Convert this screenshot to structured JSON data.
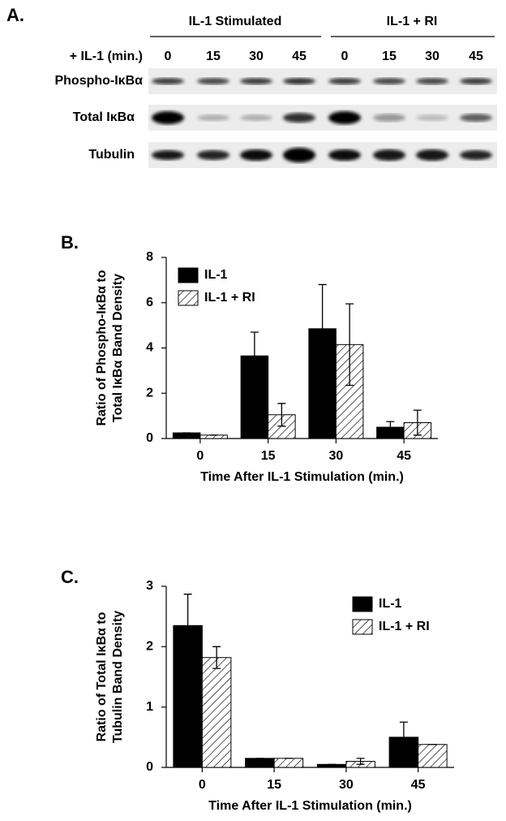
{
  "blot": {
    "panel_label": "A.",
    "groups": [
      "IL-1 Stimulated",
      "IL-1 + RI"
    ],
    "lane_title": "+ IL-1 (min.)",
    "lanes": [
      "0",
      "15",
      "30",
      "45",
      "0",
      "15",
      "30",
      "45"
    ],
    "rows": [
      "Phospho-IκBα",
      "Total IκBα",
      "Tubulin"
    ]
  },
  "chart_data": [
    {
      "type": "bar",
      "panel_label": "B.",
      "y_label": [
        "Ratio of Phospho-IκBα to",
        "Total IκBα Band Density"
      ],
      "x_label": "Time After IL-1 Stimulation (min.)",
      "categories": [
        "0",
        "15",
        "30",
        "45"
      ],
      "series": [
        {
          "name": "IL-1",
          "color": "#000000",
          "pattern": "solid",
          "values": [
            0.25,
            3.65,
            4.85,
            0.5
          ],
          "errors": [
            0,
            1.05,
            1.95,
            0.25
          ]
        },
        {
          "name": "IL-1 + RI",
          "color": "#000000",
          "pattern": "hatch",
          "values": [
            0.15,
            1.05,
            4.15,
            0.7
          ],
          "errors": [
            0,
            0.5,
            1.8,
            0.55
          ]
        }
      ],
      "ylim": [
        0,
        8
      ],
      "yticks": [
        0,
        2,
        4,
        6,
        8
      ],
      "legend": "upper left"
    },
    {
      "type": "bar",
      "panel_label": "C.",
      "y_label": [
        "Ratio of Total IκBα to",
        "Tubulin Band Density"
      ],
      "x_label": "Time After IL-1 Stimulation (min.)",
      "categories": [
        "0",
        "15",
        "30",
        "45"
      ],
      "series": [
        {
          "name": "IL-1",
          "color": "#000000",
          "pattern": "solid",
          "values": [
            2.35,
            0.15,
            0.05,
            0.5
          ],
          "errors": [
            0.52,
            0,
            0,
            0.25
          ]
        },
        {
          "name": "IL-1 + RI",
          "color": "#000000",
          "pattern": "hatch",
          "values": [
            1.82,
            0.15,
            0.1,
            0.38
          ],
          "errors": [
            0.18,
            0,
            0.05,
            0
          ]
        }
      ],
      "ylim": [
        0,
        3
      ],
      "yticks": [
        0,
        1,
        2,
        3
      ],
      "legend": "upper right"
    }
  ]
}
